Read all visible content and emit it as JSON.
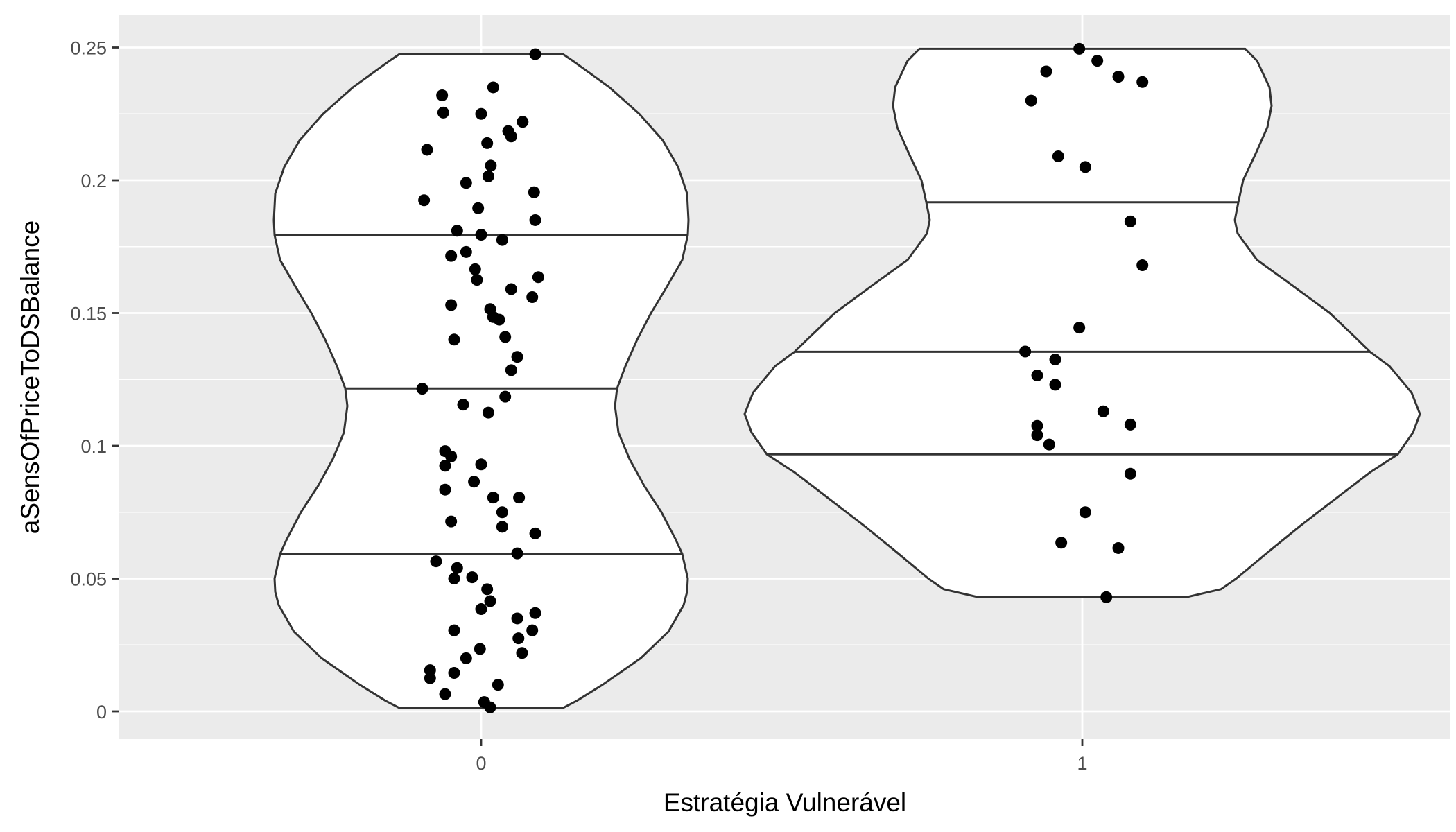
{
  "chart_data": {
    "type": "violin",
    "xlabel": "Estratégia Vulnerável",
    "ylabel": "aSensOfPriceToDSBalance",
    "categories": [
      "0",
      "1"
    ],
    "y_ticks": [
      "0",
      "0.05",
      "0.1",
      "0.15",
      "0.2",
      "0.25"
    ],
    "ylim": [
      -0.011,
      0.261
    ],
    "grid": true,
    "legend": "none",
    "colors": {
      "panel": "#ebebeb",
      "grid": "#ffffff",
      "violin_fill": "#ffffff",
      "violin_line": "#333333",
      "points": "#000000",
      "tick_text": "#4d4d4d"
    },
    "groups": [
      {
        "category": "0",
        "quantiles": [
          0.0593,
          0.1216,
          0.1794
        ],
        "range": [
          0.0013,
          0.2475
        ],
        "points": [
          [
            0.09,
            0.2475
          ],
          [
            0.02,
            0.235
          ],
          [
            -0.065,
            0.232
          ],
          [
            -0.063,
            0.2255
          ],
          [
            0.0,
            0.225
          ],
          [
            0.069,
            0.222
          ],
          [
            0.045,
            0.2185
          ],
          [
            0.05,
            0.2165
          ],
          [
            0.01,
            0.214
          ],
          [
            -0.09,
            0.2115
          ],
          [
            0.016,
            0.2055
          ],
          [
            0.012,
            0.2015
          ],
          [
            -0.025,
            0.199
          ],
          [
            0.088,
            0.1955
          ],
          [
            -0.095,
            0.1925
          ],
          [
            -0.005,
            0.1895
          ],
          [
            0.09,
            0.185
          ],
          [
            -0.04,
            0.181
          ],
          [
            0.0,
            0.1795
          ],
          [
            0.035,
            0.1775
          ],
          [
            -0.025,
            0.173
          ],
          [
            -0.05,
            0.1715
          ],
          [
            -0.01,
            0.1665
          ],
          [
            -0.007,
            0.1625
          ],
          [
            0.095,
            0.1635
          ],
          [
            0.05,
            0.159
          ],
          [
            0.085,
            0.156
          ],
          [
            -0.05,
            0.153
          ],
          [
            0.015,
            0.1515
          ],
          [
            0.02,
            0.1485
          ],
          [
            0.03,
            0.1475
          ],
          [
            0.04,
            0.141
          ],
          [
            -0.045,
            0.14
          ],
          [
            0.06,
            0.1335
          ],
          [
            0.05,
            0.1285
          ],
          [
            -0.098,
            0.1215
          ],
          [
            0.04,
            0.1185
          ],
          [
            -0.03,
            0.1155
          ],
          [
            0.012,
            0.1125
          ],
          [
            -0.06,
            0.098
          ],
          [
            -0.05,
            0.096
          ],
          [
            -0.06,
            0.0925
          ],
          [
            0.0,
            0.093
          ],
          [
            -0.012,
            0.0865
          ],
          [
            -0.06,
            0.0835
          ],
          [
            0.02,
            0.0805
          ],
          [
            0.063,
            0.0805
          ],
          [
            0.035,
            0.075
          ],
          [
            -0.05,
            0.0715
          ],
          [
            0.035,
            0.0695
          ],
          [
            0.09,
            0.067
          ],
          [
            0.06,
            0.0595
          ],
          [
            -0.075,
            0.0565
          ],
          [
            -0.04,
            0.054
          ],
          [
            -0.015,
            0.0505
          ],
          [
            -0.045,
            0.05
          ],
          [
            0.01,
            0.046
          ],
          [
            0.015,
            0.0415
          ],
          [
            0.0,
            0.0385
          ],
          [
            0.06,
            0.035
          ],
          [
            0.09,
            0.037
          ],
          [
            -0.045,
            0.0305
          ],
          [
            0.085,
            0.0305
          ],
          [
            0.062,
            0.0275
          ],
          [
            0.068,
            0.022
          ],
          [
            -0.002,
            0.0235
          ],
          [
            -0.025,
            0.02
          ],
          [
            -0.085,
            0.0155
          ],
          [
            -0.045,
            0.0145
          ],
          [
            -0.085,
            0.0125
          ],
          [
            0.028,
            0.01
          ],
          [
            -0.06,
            0.0065
          ],
          [
            0.005,
            0.0035
          ],
          [
            0.015,
            0.0015
          ]
        ]
      },
      {
        "category": "1",
        "quantiles": [
          0.0968,
          0.1354,
          0.1917
        ],
        "range": [
          0.043,
          0.2495
        ],
        "points": [
          [
            -0.005,
            0.2495
          ],
          [
            0.025,
            0.245
          ],
          [
            -0.06,
            0.241
          ],
          [
            0.06,
            0.239
          ],
          [
            0.1,
            0.237
          ],
          [
            -0.085,
            0.23
          ],
          [
            -0.04,
            0.209
          ],
          [
            0.005,
            0.205
          ],
          [
            0.08,
            0.1845
          ],
          [
            0.1,
            0.168
          ],
          [
            -0.005,
            0.1445
          ],
          [
            -0.095,
            0.1355
          ],
          [
            -0.045,
            0.1325
          ],
          [
            -0.075,
            0.1265
          ],
          [
            -0.045,
            0.123
          ],
          [
            0.035,
            0.113
          ],
          [
            0.08,
            0.108
          ],
          [
            -0.075,
            0.1075
          ],
          [
            -0.075,
            0.104
          ],
          [
            -0.055,
            0.1005
          ],
          [
            0.08,
            0.0895
          ],
          [
            0.005,
            0.075
          ],
          [
            -0.035,
            0.0635
          ],
          [
            0.06,
            0.0615
          ],
          [
            0.04,
            0.043
          ]
        ]
      }
    ]
  }
}
